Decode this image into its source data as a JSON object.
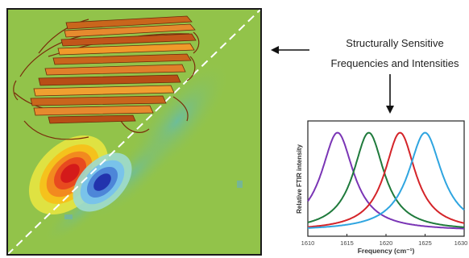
{
  "annotation": {
    "line1": "Structurally Sensitive",
    "line2": "Frequencies and Intensities"
  },
  "colors": {
    "map_background": "#92c34a",
    "positive_peak": "#e0201c",
    "negative_peak": "#2b3fb8",
    "beta_sheet": "#c9661c",
    "diagonal": "#ffffff"
  },
  "chart_data": {
    "type": "line",
    "xlabel": "Frequency (cm⁻¹)",
    "ylabel": "Relative FTIR intensity",
    "xlim": [
      1610,
      1630
    ],
    "ylim": [
      0,
      1
    ],
    "x_ticks": [
      "1610",
      "1615",
      "1620",
      "1625",
      "1630"
    ],
    "grid": false,
    "series": [
      {
        "color": "#7a35b5",
        "center": 1613.8,
        "width": 2.5,
        "values_at_ticks": [
          0.36,
          0.92,
          0.11,
          0.03,
          0.01
        ]
      },
      {
        "color": "#1f7a3c",
        "center": 1617.8,
        "width": 2.4,
        "values_at_ticks": [
          0.09,
          0.42,
          0.86,
          0.21,
          0.06
        ]
      },
      {
        "color": "#d42429",
        "center": 1621.8,
        "width": 2.4,
        "values_at_ticks": [
          0.03,
          0.1,
          0.5,
          0.78,
          0.2
        ]
      },
      {
        "color": "#2fa5e0",
        "center": 1625.0,
        "width": 2.6,
        "values_at_ticks": [
          0.01,
          0.03,
          0.12,
          0.8,
          0.18
        ]
      }
    ]
  }
}
